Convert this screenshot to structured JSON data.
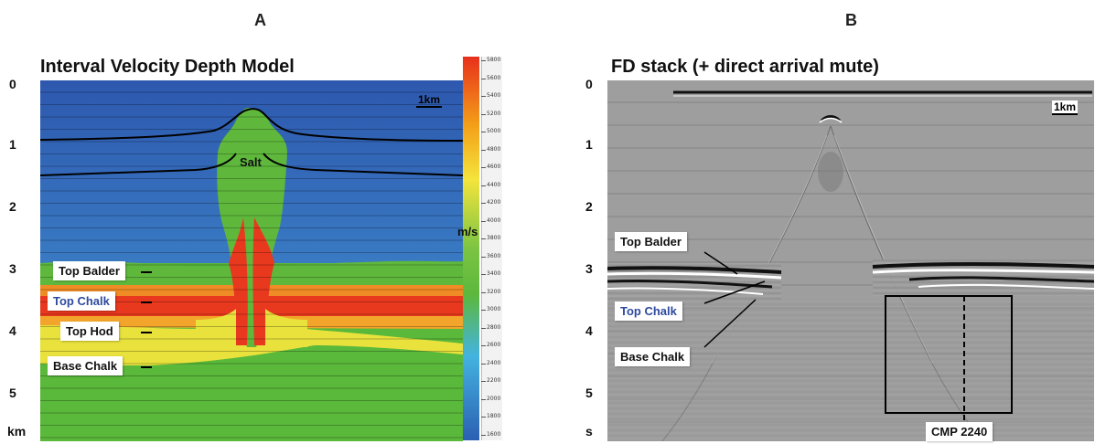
{
  "panel_a": {
    "letter": "A",
    "title": "Interval Velocity Depth Model",
    "depth_ticks": [
      "0",
      "1",
      "2",
      "3",
      "4",
      "5"
    ],
    "depth_unit": "km",
    "scale_bar": "1km",
    "salt_label": "Salt",
    "horizons": [
      {
        "label": "Top Balder",
        "color": "#111111"
      },
      {
        "label": "Top Chalk",
        "color": "#2e4a9e"
      },
      {
        "label": "Top Hod",
        "color": "#111111"
      },
      {
        "label": "Base Chalk",
        "color": "#111111"
      }
    ],
    "colorbar": {
      "unit": "m/s",
      "ticks": [
        "5800",
        "5600",
        "5400",
        "5200",
        "5000",
        "4800",
        "4600",
        "4400",
        "4200",
        "4000",
        "3800",
        "3600",
        "3400",
        "3200",
        "3000",
        "2800",
        "2600",
        "2400",
        "2200",
        "2000",
        "1800",
        "1600"
      ],
      "colors": [
        "#e8301c",
        "#f4a018",
        "#f4e43c",
        "#7cc443",
        "#44b3e0",
        "#2b5fb2"
      ]
    },
    "layer_colors": {
      "upper": "#2f5fb5",
      "upper_light": "#3a78c2",
      "green": "#5fb83c",
      "yellow": "#e9e13c",
      "red": "#e8381e",
      "orange": "#f08c25",
      "lower": "#5ab83a"
    }
  },
  "panel_b": {
    "letter": "B",
    "title": "FD stack (+ direct arrival mute)",
    "depth_ticks": [
      "0",
      "1",
      "2",
      "3",
      "4",
      "5"
    ],
    "depth_unit": "s",
    "scale_bar": "1km",
    "horizons": [
      {
        "label": "Top Balder",
        "color": "#111111"
      },
      {
        "label": "Top Chalk",
        "color": "#2e4a9e"
      },
      {
        "label": "Base Chalk",
        "color": "#111111"
      }
    ],
    "cmp_label": "CMP 2240"
  }
}
